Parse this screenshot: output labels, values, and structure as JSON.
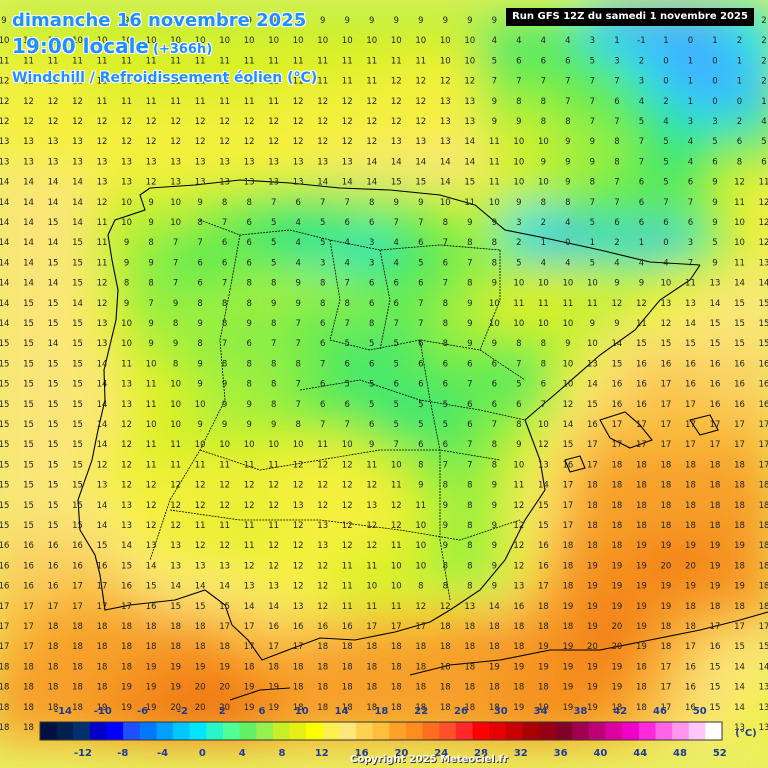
{
  "header": {
    "date_line": "dimanche 16 novembre 2025",
    "time_line": "19:00 locale",
    "lead_time": "(+366h)",
    "variable": "Windchill / Refroidissement éolien (°C)",
    "run_info": "Run GFS 12Z du samedi 1 novembre 2025"
  },
  "legend": {
    "unit": "(°C)",
    "upper_ticks": [
      "-14",
      "-10",
      "-6",
      "-2",
      "2",
      "6",
      "10",
      "14",
      "18",
      "22",
      "26",
      "30",
      "34",
      "38",
      "42",
      "46",
      "50"
    ],
    "lower_ticks": [
      "-12",
      "-8",
      "-4",
      "0",
      "4",
      "8",
      "12",
      "16",
      "20",
      "24",
      "28",
      "32",
      "36",
      "40",
      "44",
      "48",
      "52"
    ],
    "colors": [
      "#001040",
      "#002050",
      "#003070",
      "#0000c8",
      "#0000ff",
      "#1e50ff",
      "#0078ff",
      "#00a0ff",
      "#00c8ff",
      "#00e6ff",
      "#28f5c8",
      "#50ff96",
      "#64f064",
      "#96f050",
      "#c8f028",
      "#e6f014",
      "#ffff00",
      "#fff050",
      "#ffe678",
      "#ffd250",
      "#ffbe3c",
      "#ffa028",
      "#ff8c1e",
      "#ff6e1e",
      "#ff5028",
      "#ff2828",
      "#ff0000",
      "#e60000",
      "#c80000",
      "#aa0000",
      "#960014",
      "#820028",
      "#a00050",
      "#be0078",
      "#dc00a0",
      "#f000c8",
      "#ff28dc",
      "#ff64e6",
      "#ff96f0",
      "#ffc8f8",
      "#ffffff"
    ]
  },
  "copyright": "Copyright 2025 Meteociel.fr",
  "grid": {
    "rows": [
      "9 9 9 9 9 9 9 9 9 9 9 9 9 9 9 9 9 9 9 9 9 9 9 9 3 1 -1 1 1 1 2 2",
      "10 10 10 10 10 10 10 10 10 10 10 10 10 10 10 10 10 10 10 10 4 4 4 4 3 1 -1 1 0 1 2 2",
      "11 11 11 11 11 11 11 11 11 11 11 11 11 11 11 11 11 11 10 10 5 6 6 6 5 3 2 0 1 0 1 2",
      "12 12 12 12 11 11 11 11 11 11 11 11 11 11 11 11 12 12 12 12 7 7 7 7 7 7 3 0 1 0 1 2",
      "12 12 12 12 11 11 11 11 11 11 11 11 12 12 12 12 12 12 13 13 9 8 8 7 7 6 4 2 1 0 0 1",
      "12 12 12 12 12 12 12 12 12 12 12 12 12 12 12 12 12 12 13 13 9 9 8 8 7 7 5 4 3 3 2 4",
      "13 13 13 13 12 12 12 12 12 12 12 12 12 12 12 12 13 13 13 14 11 10 10 9 9 8 7 5 4 5 6 5",
      "13 13 13 13 13 13 13 13 13 13 13 13 13 13 13 14 14 14 14 14 11 10 9 9 9 8 7 5 4 6 8 6",
      "14 14 14 14 13 13 12 13 13 13 13 13 13 14 14 14 15 15 14 15 11 10 10 9 8 7 6 5 6 9 12 11",
      "14 14 14 14 12 10 9 10 9 8 8 7 6 7 7 8 9 9 10 11 10 9 8 8 7 7 6 7 7 9 11 12",
      "14 14 15 14 11 10 9 10 8 7 6 5 4 5 6 6 7 7 8 9 9 3 2 4 5 6 6 6 6 9 10 12",
      "14 14 14 15 11 9 8 7 7 6 6 5 4 5 4 3 4 6 7 8 8 2 1 0 1 2 1 0 3 5 10 12",
      "14 14 15 15 11 9 9 7 6 6 6 5 4 3 4 3 4 5 6 7 8 5 4 4 5 4 4 4 7 9 11 13",
      "14 14 14 15 12 8 8 7 6 7 8 8 9 8 7 6 6 6 7 8 9 10 10 10 10 9 9 10 11 13 14 14",
      "14 15 15 14 12 9 7 9 8 8 8 9 9 8 8 6 6 7 8 9 10 11 11 11 11 12 12 13 13 14 15 15",
      "14 15 15 15 13 10 9 8 9 8 9 8 7 6 7 8 7 7 8 9 10 10 10 10 9 9 11 12 14 15 15 15",
      "15 15 14 15 13 10 9 9 8 7 6 7 7 6 5 5 5 6 8 9 9 8 8 9 10 14 15 15 15 15 15 15",
      "15 15 15 15 14 11 10 8 9 8 8 8 8 7 6 6 5 6 6 6 6 7 8 10 13 15 16 16 16 16 16 16",
      "15 15 15 15 14 13 11 10 9 9 8 8 7 6 5 5 6 6 6 7 6 5 6 10 14 16 16 17 16 16 16 16",
      "15 15 15 15 14 13 11 10 10 9 9 8 7 6 6 5 5 5 5 6 6 6 7 12 15 16 16 17 17 16 16 16",
      "15 15 15 15 14 12 10 10 9 9 9 9 8 7 7 6 5 5 5 6 7 8 10 14 16 17 17 17 17 17 17 17",
      "15 15 15 15 14 12 11 11 10 10 10 10 10 11 10 9 7 6 6 7 8 9 12 15 17 17 17 17 17 17 17 17",
      "15 15 15 15 12 12 11 11 11 11 11 11 12 12 12 11 10 8 7 7 8 10 13 16 17 18 18 18 18 18 18 17",
      "15 15 15 15 13 12 12 12 12 12 12 12 12 12 12 12 11 9 8 8 9 11 14 17 18 18 18 18 18 18 18 18",
      "15 15 15 15 14 13 12 12 12 12 12 12 13 12 12 13 12 11 9 8 9 12 15 17 18 18 18 18 18 18 18 18",
      "15 15 15 15 14 13 12 12 11 11 11 11 12 13 12 12 12 10 9 8 9 12 15 17 18 18 18 18 18 18 18 18",
      "16 16 16 16 15 14 13 13 12 12 11 12 12 13 12 12 11 10 9 8 9 12 16 18 18 18 19 19 19 19 19 18",
      "16 16 16 16 16 15 14 13 13 13 12 12 12 12 11 11 10 10 8 8 9 12 16 18 19 19 19 20 20 19 18 18",
      "16 16 16 17 17 16 15 14 14 14 13 13 12 12 11 10 10 8 8 8 9 13 17 18 19 19 19 19 19 19 19 18",
      "17 17 17 17 17 17 16 15 15 15 14 14 13 12 11 11 11 12 12 13 14 16 18 19 19 19 19 19 18 18 18 18",
      "17 17 18 18 18 18 18 18 18 17 17 16 16 16 16 17 17 17 18 18 18 18 18 18 19 20 19 18 18 17 17 17",
      "17 17 18 18 18 18 18 18 18 18 17 17 17 18 18 18 18 18 18 18 18 18 19 19 20 20 19 18 17 16 15 15",
      "18 18 18 18 18 18 19 19 19 19 18 18 18 18 18 18 18 18 18 18 19 19 19 19 19 19 18 17 16 15 14 14",
      "18 18 18 18 18 19 19 19 20 20 19 19 18 18 18 18 18 18 18 18 18 18 18 19 19 19 18 17 16 15 14 13",
      "18 18 18 18 19 19 19 20 20 20 19 19 18 18 18 18 18 18 18 18 18 19 19 19 19 18 18 17 16 15 14 13",
      "18 18 18 18 19 19 20 20 21 21 20 19 18 18 18 18 18 18 18 19 19 19 19 19 18 18 17 16 15 14 13 13"
    ]
  }
}
